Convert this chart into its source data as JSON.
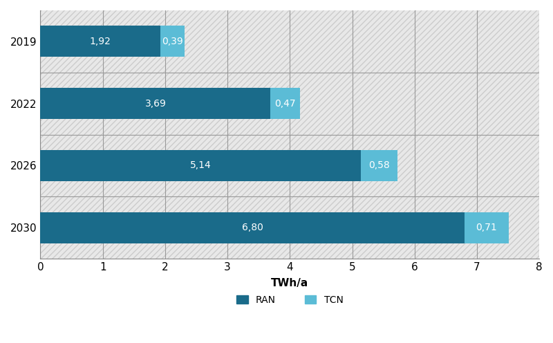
{
  "years": [
    "2019",
    "2022",
    "2026",
    "2030"
  ],
  "ran_values": [
    1.92,
    3.69,
    5.14,
    6.8
  ],
  "tcn_values": [
    0.39,
    0.47,
    0.58,
    0.71
  ],
  "ran_labels": [
    "1,92",
    "3,69",
    "5,14",
    "6,80"
  ],
  "tcn_labels": [
    "0,39",
    "0,47",
    "0,58",
    "0,71"
  ],
  "ran_color": "#1a6b8a",
  "tcn_color": "#5bbcd6",
  "xlabel": "TWh/a",
  "xlim": [
    0,
    8
  ],
  "xticks": [
    0,
    1,
    2,
    3,
    4,
    5,
    6,
    7,
    8
  ],
  "bar_height": 0.5,
  "background_color": "#ffffff",
  "hatch_color": "#d8d8d8",
  "grid_color": "#aaaaaa",
  "legend_ran": "RAN",
  "legend_tcn": "TCN",
  "label_fontsize": 10,
  "tick_fontsize": 11,
  "xlabel_fontsize": 11,
  "legend_fontsize": 10
}
